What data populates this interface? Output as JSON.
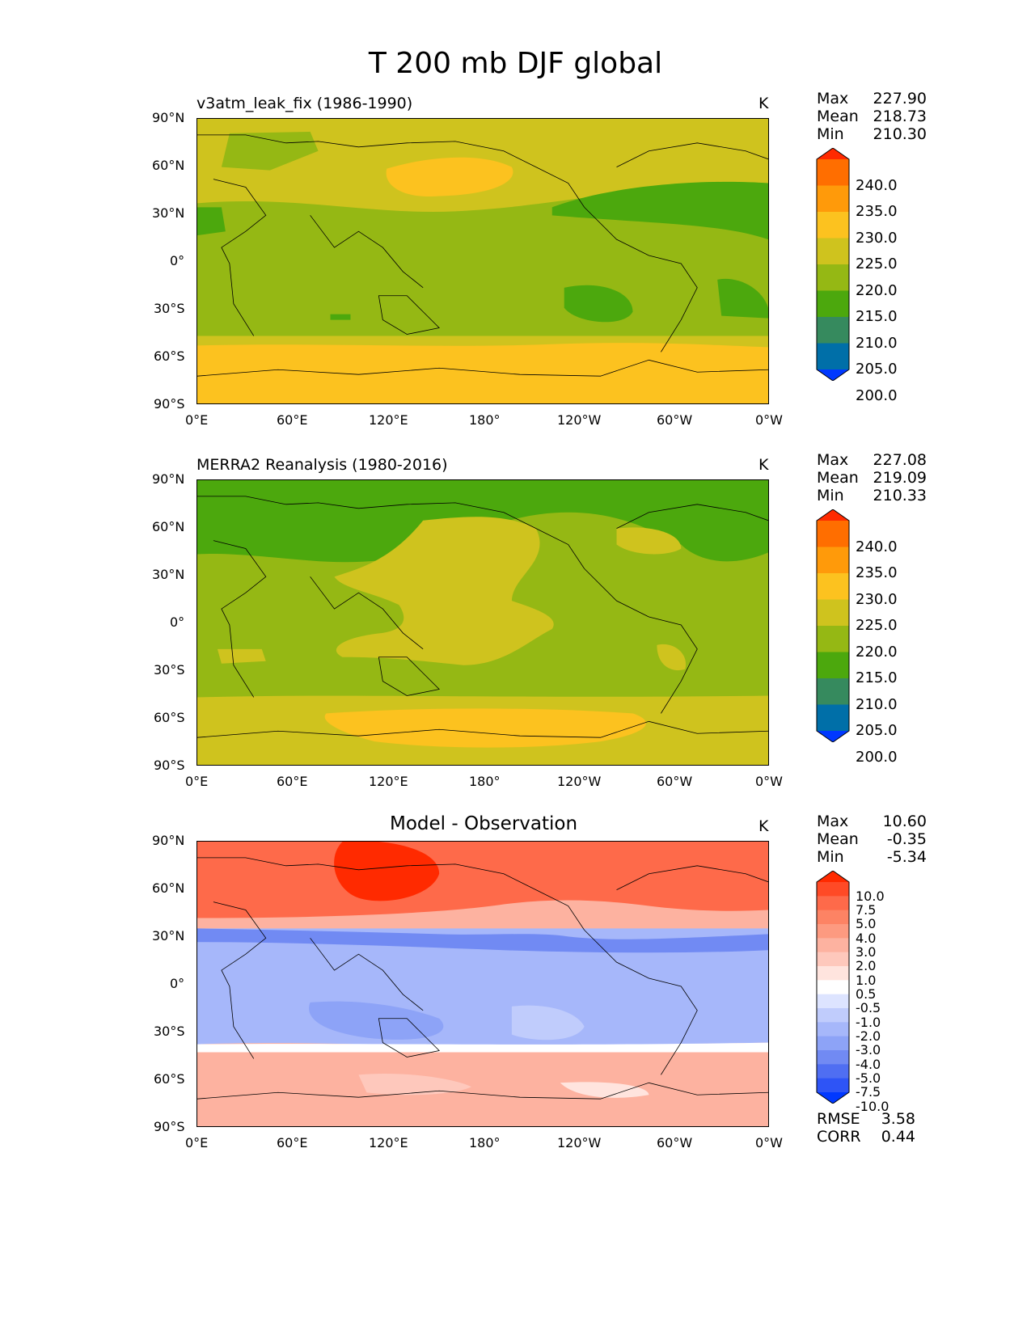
{
  "title": "T 200 mb DJF global",
  "panels": [
    {
      "label": "v3atm_leak_fix (1986-1990)",
      "unit": "K",
      "stats": [
        {
          "k": "Max",
          "v": "227.90"
        },
        {
          "k": "Mean",
          "v": "218.73"
        },
        {
          "k": "Min",
          "v": "210.30"
        }
      ]
    },
    {
      "label": "MERRA2 Reanalysis (1980-2016)",
      "unit": "K",
      "stats": [
        {
          "k": "Max",
          "v": "227.08"
        },
        {
          "k": "Mean",
          "v": "219.09"
        },
        {
          "k": "Min",
          "v": "210.33"
        }
      ]
    },
    {
      "label": "Model - Observation",
      "unit": "K",
      "stats": [
        {
          "k": "Max",
          "v": "10.60"
        },
        {
          "k": "Mean",
          "v": "-0.35"
        },
        {
          "k": "Min",
          "v": "-5.34"
        }
      ],
      "metrics": [
        {
          "k": "RMSE",
          "v": "3.58"
        },
        {
          "k": "CORR",
          "v": "0.44"
        }
      ]
    }
  ],
  "chart_data": {
    "type": "heatmap",
    "xticks": [
      "0°E",
      "60°E",
      "120°E",
      "180°",
      "120°W",
      "60°W",
      "0°W"
    ],
    "yticks": [
      "90°N",
      "60°N",
      "30°N",
      "0°",
      "30°S",
      "60°S",
      "90°S"
    ],
    "abs_colorbar": {
      "labels": [
        "240.0",
        "235.0",
        "230.0",
        "225.0",
        "220.0",
        "215.0",
        "210.0",
        "205.0",
        "200.0"
      ],
      "colors": [
        "#ff2a00",
        "#ff6e00",
        "#ff9a0a",
        "#fcc21f",
        "#cfc31e",
        "#95b814",
        "#4ca80d",
        "#368a5e",
        "#006fa8",
        "#0038ff"
      ]
    },
    "diff_colorbar": {
      "labels": [
        "10.0",
        "7.5",
        "5.0",
        "4.0",
        "3.0",
        "2.0",
        "1.0",
        "0.5",
        "-0.5",
        "-1.0",
        "-2.0",
        "-3.0",
        "-4.0",
        "-5.0",
        "-7.5",
        "-10.0"
      ],
      "colors": [
        "#ff2a00",
        "#ff4a26",
        "#fe6a4a",
        "#fd8364",
        "#fd9a80",
        "#fdb2a0",
        "#fec8bc",
        "#ffe4de",
        "#ffffff",
        "#dde4ff",
        "#c0ccfc",
        "#a6b7fa",
        "#8da3f7",
        "#718af3",
        "#4f6ef2",
        "#2e54f6",
        "#0038ff"
      ]
    }
  }
}
